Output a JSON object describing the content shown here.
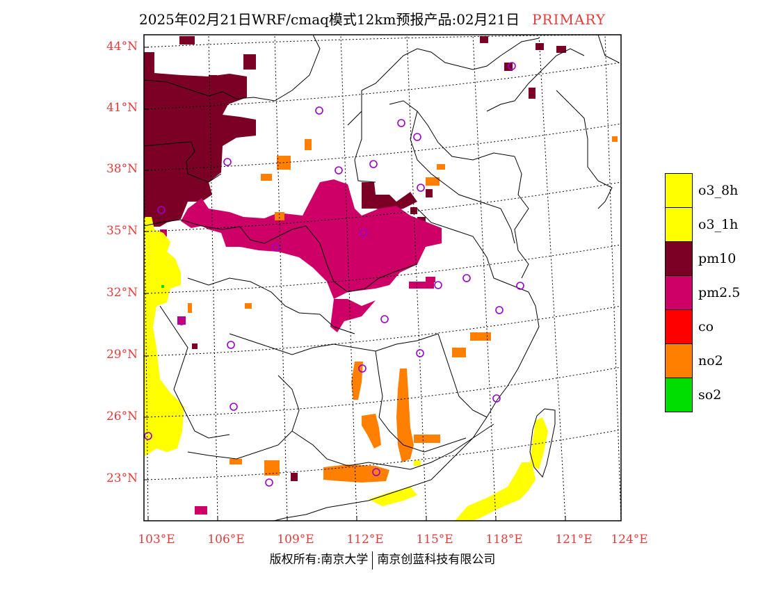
{
  "title": {
    "text": "2025年02月21日WRF/cmaq模式12km预报产品:02月21日",
    "tag": "PRIMARY"
  },
  "axes": {
    "lat_labels": [
      "44°N",
      "41°N",
      "38°N",
      "35°N",
      "32°N",
      "29°N",
      "26°N",
      "23°N"
    ],
    "lon_labels": [
      "103°E",
      "106°E",
      "109°E",
      "112°E",
      "115°E",
      "118°E",
      "121°E",
      "124°E"
    ]
  },
  "colors": {
    "o3_8h": "#ffff00",
    "o3_1h": "#ffff00",
    "pm10": "#7a0026",
    "pm25": "#cc0066",
    "co": "#ff0000",
    "no2": "#ff7f00",
    "so2": "#00dd00",
    "station": "#9900cc",
    "label": "#e03c3c"
  },
  "legend": [
    {
      "label": "o3_8h",
      "color": "#ffff00"
    },
    {
      "label": "o3_1h",
      "color": "#ffff00"
    },
    {
      "label": "pm10",
      "color": "#7a0026"
    },
    {
      "label": "pm2.5",
      "color": "#cc0066"
    },
    {
      "label": "co",
      "color": "#ff0000"
    },
    {
      "label": "no2",
      "color": "#ff7f00"
    },
    {
      "label": "so2",
      "color": "#00dd00"
    }
  ],
  "footer": {
    "left": "版权所有:南京大学",
    "right": "南京创蓝科技有限公司"
  }
}
